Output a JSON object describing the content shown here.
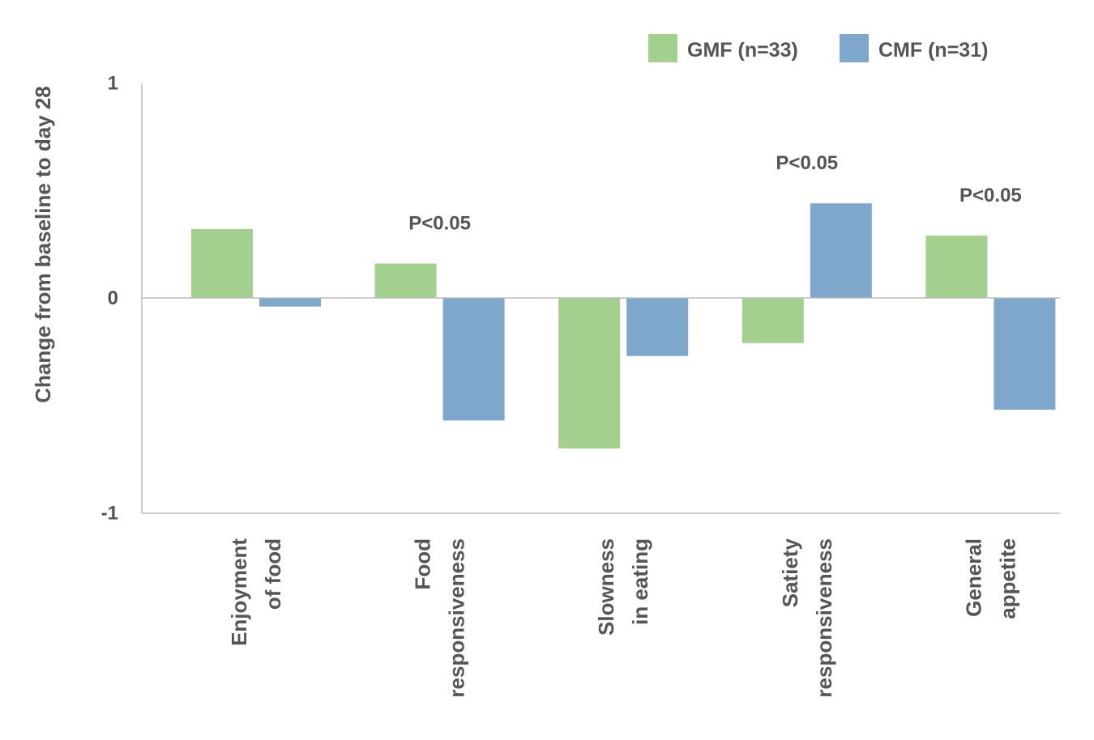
{
  "chart_data": {
    "type": "bar",
    "ylabel": "Change from baseline to day 28",
    "xlabel": "",
    "ylim": [
      -1,
      1
    ],
    "yticks": [
      "1",
      "0",
      "-1"
    ],
    "ytick_values": [
      1,
      0,
      -1
    ],
    "grid": false,
    "legend_position": "top-right",
    "categories": [
      [
        "Enjoyment",
        "of food"
      ],
      [
        "Food",
        "responsiveness"
      ],
      [
        "Slowness",
        "in eating"
      ],
      [
        "Satiety",
        "responsiveness"
      ],
      [
        "General",
        "appetite"
      ]
    ],
    "series": [
      {
        "name": "GMF (n=33)",
        "color": "#a3d08e",
        "values": [
          0.32,
          0.16,
          -0.7,
          -0.21,
          0.29
        ]
      },
      {
        "name": "CMF (n=31)",
        "color": "#7fa7cb",
        "values": [
          -0.04,
          -0.57,
          -0.27,
          0.44,
          -0.52
        ]
      }
    ],
    "annotations": [
      {
        "category_index": 1,
        "text": "P<0.05"
      },
      {
        "category_index": 3,
        "text": "P<0.05"
      },
      {
        "category_index": 4,
        "text": "P<0.05"
      }
    ]
  }
}
